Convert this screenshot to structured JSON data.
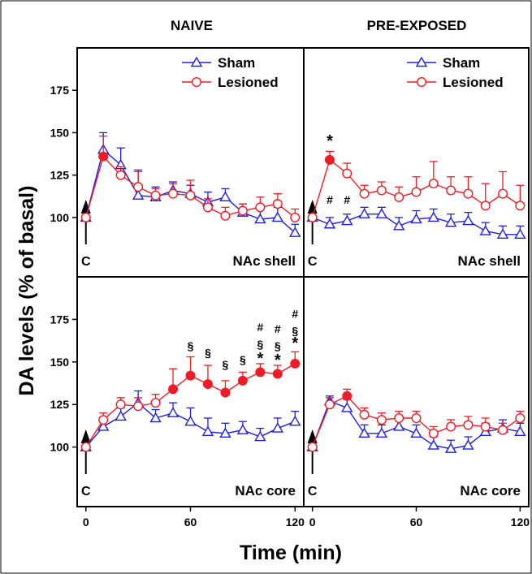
{
  "figure": {
    "ylabel": "DA levels (% of basal)",
    "xlabel": "Time (min)",
    "column_titles": [
      "NAIVE",
      "PRE-EXPOSED"
    ],
    "legend": {
      "sham": "Sham",
      "lesioned": "Lesioned"
    },
    "colors": {
      "sham": "#1f1fe0",
      "lesioned": "#ee1c24",
      "axis": "#000000"
    }
  },
  "chart_data": [
    {
      "type": "line",
      "panel": "NAIVE · NAc shell",
      "label": "NAc shell",
      "stimulus_label": "C",
      "x": [
        0,
        10,
        20,
        30,
        40,
        50,
        60,
        70,
        80,
        90,
        100,
        110,
        120
      ],
      "xticks": [
        0,
        60,
        120
      ],
      "yticks": [
        100,
        125,
        150,
        175
      ],
      "xlim": [
        -5,
        125
      ],
      "ylim": [
        65,
        200
      ],
      "legend_position": "top-right",
      "series": [
        {
          "name": "Sham",
          "marker": "triangle-open",
          "values": [
            100,
            140,
            131,
            113,
            112,
            116,
            114,
            109,
            112,
            103,
            99,
            100,
            91
          ],
          "errors": [
            0,
            10,
            10,
            15,
            6,
            5,
            5,
            6,
            5,
            5,
            6,
            6,
            5
          ],
          "filled": []
        },
        {
          "name": "Lesioned",
          "marker": "circle-open",
          "values": [
            100,
            136,
            125,
            118,
            113,
            114,
            113,
            106,
            101,
            104,
            106,
            108,
            100
          ],
          "errors": [
            0,
            12,
            5,
            9,
            4,
            6,
            9,
            5,
            5,
            4,
            6,
            6,
            5
          ],
          "filled": [
            1
          ]
        }
      ],
      "annotations": []
    },
    {
      "type": "line",
      "panel": "PRE-EXPOSED · NAc shell",
      "label": "NAc shell",
      "stimulus_label": "C",
      "x": [
        0,
        10,
        20,
        30,
        40,
        50,
        60,
        70,
        80,
        90,
        100,
        110,
        120
      ],
      "xticks": [
        0,
        60,
        120
      ],
      "yticks": [
        100,
        125,
        150,
        175
      ],
      "xlim": [
        -5,
        125
      ],
      "ylim": [
        65,
        200
      ],
      "legend_position": "top-right",
      "series": [
        {
          "name": "Sham",
          "marker": "triangle-open",
          "values": [
            100,
            96,
            98,
            102,
            102,
            95,
            99,
            100,
            97,
            98,
            92,
            90,
            90
          ],
          "errors": [
            0,
            4,
            4,
            4,
            4,
            5,
            5,
            5,
            5,
            5,
            5,
            5,
            5
          ],
          "filled": []
        },
        {
          "name": "Lesioned",
          "marker": "circle-open",
          "values": [
            100,
            134,
            126,
            114,
            116,
            112,
            115,
            120,
            116,
            114,
            107,
            114,
            107
          ],
          "errors": [
            0,
            5,
            6,
            5,
            5,
            6,
            9,
            13,
            8,
            10,
            13,
            13,
            12
          ],
          "filled": [
            1
          ]
        }
      ],
      "annotations": [
        {
          "x": 10,
          "y": 142,
          "text": "*"
        },
        {
          "x": 10,
          "y": 108,
          "text": "#"
        },
        {
          "x": 20,
          "y": 108,
          "text": "#"
        }
      ]
    },
    {
      "type": "line",
      "panel": "NAIVE · NAc core",
      "label": "NAc core",
      "stimulus_label": "C",
      "x": [
        0,
        10,
        20,
        30,
        40,
        50,
        60,
        70,
        80,
        90,
        100,
        110,
        120
      ],
      "xticks": [
        0,
        60,
        120
      ],
      "yticks": [
        100,
        125,
        150,
        175
      ],
      "xlim": [
        -5,
        125
      ],
      "ylim": [
        65,
        200
      ],
      "series": [
        {
          "name": "Sham",
          "marker": "triangle-open",
          "values": [
            100,
            112,
            118,
            126,
            117,
            120,
            115,
            109,
            108,
            110,
            106,
            111,
            115
          ],
          "errors": [
            0,
            5,
            5,
            7,
            5,
            6,
            8,
            8,
            6,
            5,
            5,
            6,
            6
          ],
          "filled": []
        },
        {
          "name": "Lesioned",
          "marker": "circle-open",
          "values": [
            100,
            116,
            125,
            124,
            126,
            134,
            142,
            137,
            132,
            139,
            144,
            143,
            149
          ],
          "errors": [
            0,
            4,
            4,
            5,
            5,
            12,
            11,
            11,
            7,
            5,
            5,
            5,
            7
          ],
          "filled": [
            5,
            6,
            7,
            8,
            9,
            10,
            11,
            12
          ]
        }
      ],
      "annotations": [
        {
          "x": 60,
          "y": 157,
          "text": "§"
        },
        {
          "x": 70,
          "y": 153,
          "text": "§"
        },
        {
          "x": 80,
          "y": 146,
          "text": "§"
        },
        {
          "x": 90,
          "y": 149,
          "text": "§"
        },
        {
          "x": 100,
          "y": 149,
          "text": "*"
        },
        {
          "x": 100,
          "y": 158,
          "text": "§"
        },
        {
          "x": 100,
          "y": 168,
          "text": "#"
        },
        {
          "x": 110,
          "y": 148,
          "text": "*"
        },
        {
          "x": 110,
          "y": 157,
          "text": "§"
        },
        {
          "x": 110,
          "y": 167,
          "text": "#"
        },
        {
          "x": 120,
          "y": 158,
          "text": "*"
        },
        {
          "x": 120,
          "y": 166,
          "text": "§"
        },
        {
          "x": 120,
          "y": 176,
          "text": "#"
        }
      ]
    },
    {
      "type": "line",
      "panel": "PRE-EXPOSED · NAc core",
      "label": "NAc core",
      "stimulus_label": "C",
      "x": [
        0,
        10,
        20,
        30,
        40,
        50,
        60,
        70,
        80,
        90,
        100,
        110,
        120
      ],
      "xticks": [
        0,
        60,
        120
      ],
      "yticks": [
        100,
        125,
        150,
        175
      ],
      "xlim": [
        -5,
        125
      ],
      "ylim": [
        65,
        200
      ],
      "series": [
        {
          "name": "Sham",
          "marker": "triangle-open",
          "values": [
            100,
            127,
            123,
            108,
            108,
            112,
            108,
            101,
            99,
            101,
            109,
            111,
            109
          ],
          "errors": [
            0,
            3,
            5,
            5,
            5,
            5,
            5,
            5,
            5,
            5,
            5,
            5,
            5
          ],
          "filled": [
            1
          ]
        },
        {
          "name": "Lesioned",
          "marker": "circle-open",
          "values": [
            100,
            125,
            130,
            119,
            116,
            117,
            117,
            108,
            112,
            113,
            112,
            110,
            117
          ],
          "errors": [
            0,
            4,
            4,
            4,
            4,
            4,
            4,
            4,
            4,
            5,
            5,
            4,
            4
          ],
          "filled": [
            2
          ]
        }
      ],
      "annotations": []
    }
  ]
}
